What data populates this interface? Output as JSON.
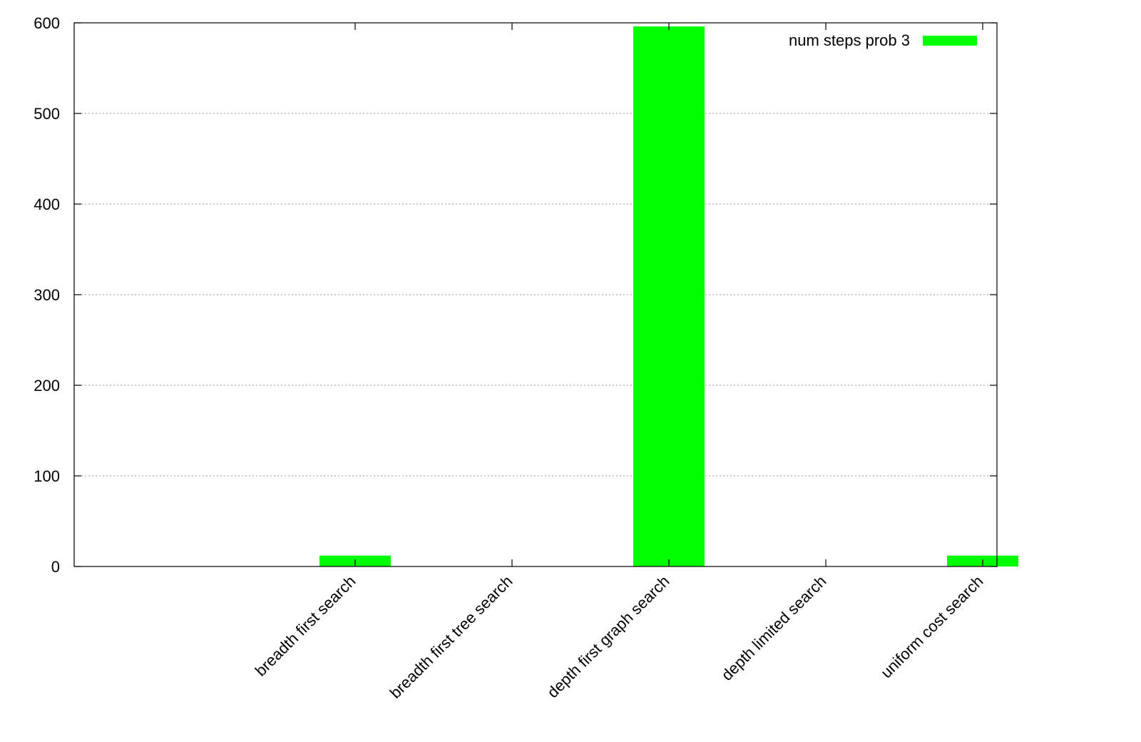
{
  "chart_data": {
    "type": "bar",
    "categories": [
      "breadth first search",
      "breadth first tree search",
      "depth first graph search",
      "depth limited search",
      "uniform cost search"
    ],
    "series": [
      {
        "name": "num steps prob 3",
        "values": [
          12,
          0,
          596,
          0,
          12
        ],
        "color": "#00ff00"
      }
    ],
    "title": "",
    "xlabel": "",
    "ylabel": "",
    "ylim": [
      0,
      600
    ],
    "yticks": [
      "0",
      "100",
      "200",
      "300",
      "400",
      "500",
      "600"
    ],
    "grid": "horizontal dotted",
    "legend_position": "top-right"
  }
}
